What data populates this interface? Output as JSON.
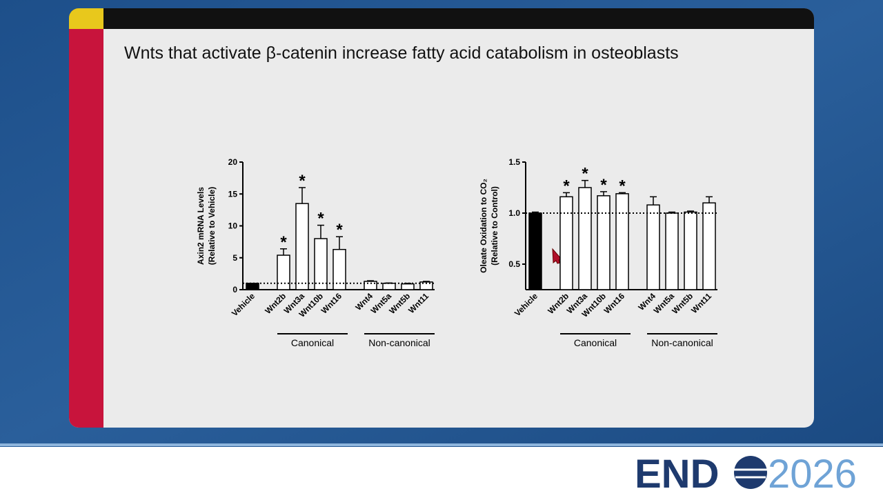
{
  "slide_title": "Wnts that activate β-catenin increase fatty acid catabolism in osteoblasts",
  "logo": {
    "left": "END",
    "right": "2026"
  },
  "chart_data": [
    {
      "type": "bar",
      "ylabel": [
        "Axin2 mRNA Levels",
        "(Relative to Vehicle)"
      ],
      "categories": [
        "Vehicle",
        "Wnt2b",
        "Wnt3a",
        "Wnt10b",
        "Wnt16",
        "Wnt4",
        "Wnt5a",
        "Wnt5b",
        "Wnt11"
      ],
      "values": [
        1,
        5.4,
        13.5,
        8,
        6.3,
        1.3,
        1.0,
        0.9,
        1.2
      ],
      "errors": [
        0,
        1.0,
        2.5,
        2.1,
        2.0,
        0.1,
        0.05,
        0.1,
        0.1
      ],
      "colors": [
        "#000000",
        "#ffffff",
        "#ffffff",
        "#ffffff",
        "#ffffff",
        "#ffffff",
        "#ffffff",
        "#ffffff",
        "#ffffff"
      ],
      "edgecolor": "#000000",
      "significance": [
        null,
        "*",
        "*",
        "*",
        "*",
        null,
        null,
        null,
        null
      ],
      "reference_line": 1,
      "groups": [
        {
          "name": "Canonical",
          "members": [
            "Wnt2b",
            "Wnt3a",
            "Wnt10b",
            "Wnt16"
          ]
        },
        {
          "name": "Non-canonical",
          "members": [
            "Wnt4",
            "Wnt5a",
            "Wnt5b",
            "Wnt11"
          ]
        }
      ],
      "ylim": [
        0,
        20
      ],
      "yticks": [
        0,
        5,
        10,
        15,
        20
      ]
    },
    {
      "type": "bar",
      "ylabel": [
        "Oleate Oxidation to CO₂",
        "(Relative to Control)"
      ],
      "categories": [
        "Vehicle",
        "Wnt2b",
        "Wnt3a",
        "Wnt10b",
        "Wnt16",
        "Wnt4",
        "Wnt5a",
        "Wnt5b",
        "Wnt11"
      ],
      "values": [
        1.0,
        1.16,
        1.25,
        1.17,
        1.19,
        1.08,
        1.0,
        1.01,
        1.1
      ],
      "errors": [
        0.01,
        0.04,
        0.07,
        0.04,
        0.01,
        0.08,
        0.01,
        0.01,
        0.06
      ],
      "colors": [
        "#000000",
        "#ffffff",
        "#ffffff",
        "#ffffff",
        "#ffffff",
        "#ffffff",
        "#ffffff",
        "#ffffff",
        "#ffffff"
      ],
      "edgecolor": "#000000",
      "significance": [
        null,
        "*",
        "*",
        "*",
        "*",
        null,
        null,
        null,
        null
      ],
      "reference_line": 1,
      "groups": [
        {
          "name": "Canonical",
          "members": [
            "Wnt2b",
            "Wnt3a",
            "Wnt10b",
            "Wnt16"
          ]
        },
        {
          "name": "Non-canonical",
          "members": [
            "Wnt4",
            "Wnt5a",
            "Wnt5b",
            "Wnt11"
          ]
        }
      ],
      "ylim": [
        0.25,
        1.5
      ],
      "yticks": [
        0.5,
        {
          "value": 1,
          "label": "1.0"
        },
        1.5
      ]
    }
  ]
}
